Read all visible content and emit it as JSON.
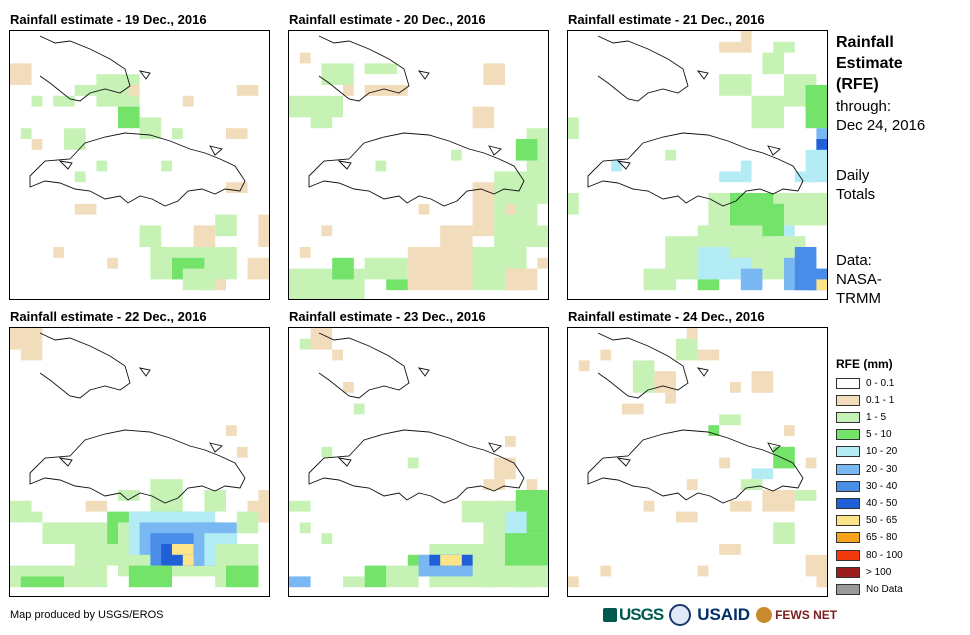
{
  "panels": [
    {
      "title": "Rainfall estimate - 19 Dec., 2016"
    },
    {
      "title": "Rainfall estimate - 20 Dec., 2016"
    },
    {
      "title": "Rainfall estimate - 21 Dec., 2016"
    },
    {
      "title": "Rainfall estimate - 22 Dec., 2016"
    },
    {
      "title": "Rainfall estimate - 23 Dec., 2016"
    },
    {
      "title": "Rainfall estimate - 24 Dec., 2016"
    }
  ],
  "side": {
    "title_lines": [
      "Rainfall",
      "Estimate",
      "(RFE)"
    ],
    "through_label": "through:",
    "through_date": "Dec 24, 2016",
    "totals_lines": [
      "Daily",
      "Totals"
    ],
    "data_lines": [
      "Data:",
      "NASA-",
      "TRMM"
    ]
  },
  "legend": {
    "title": "RFE (mm)",
    "items": [
      {
        "label": "0 - 0.1",
        "color": "#ffffff"
      },
      {
        "label": "0.1 - 1",
        "color": "#f1dcbc"
      },
      {
        "label": "1 - 5",
        "color": "#c6f2b6"
      },
      {
        "label": "5 - 10",
        "color": "#73e36a"
      },
      {
        "label": "10 - 20",
        "color": "#b4ecf6"
      },
      {
        "label": "20 - 30",
        "color": "#79b8f2"
      },
      {
        "label": "30 - 40",
        "color": "#4a8de8"
      },
      {
        "label": "40 - 50",
        "color": "#1f5fd8"
      },
      {
        "label": "50 - 65",
        "color": "#fbe48a"
      },
      {
        "label": "65 - 80",
        "color": "#f7a21b"
      },
      {
        "label": "80 - 100",
        "color": "#f23a0d"
      },
      {
        "label": "> 100",
        "color": "#9c1d1d"
      },
      {
        "label": "No Data",
        "color": "#999999"
      }
    ]
  },
  "footer": {
    "credit": "Map produced by USGS/EROS"
  },
  "logos": {
    "usgs": "USGS",
    "usaid": "USAID",
    "fews": "FEWS NET"
  }
}
